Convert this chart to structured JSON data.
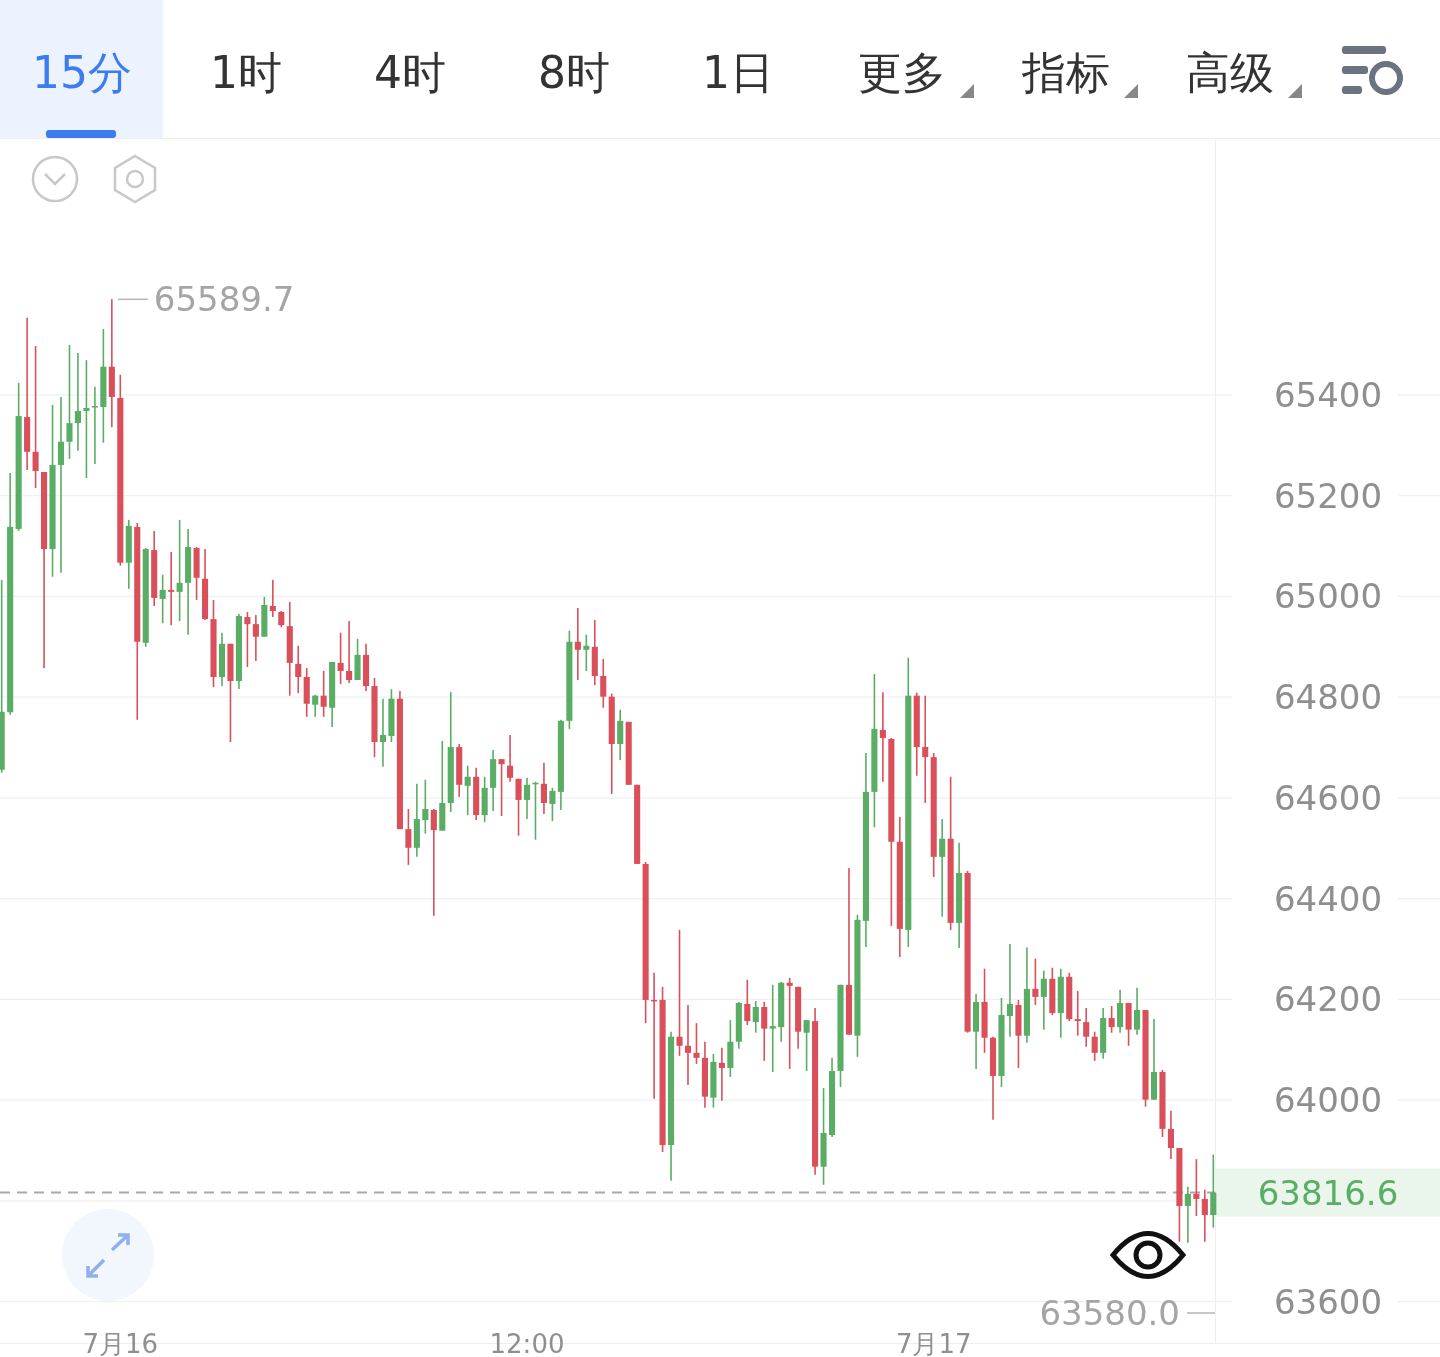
{
  "chart_data": {
    "type": "candlestick",
    "categories": [
      null,
      null,
      null,
      null,
      null,
      null,
      null,
      null,
      null,
      null,
      null,
      null,
      null,
      null,
      "7月16",
      null,
      null,
      null,
      null,
      null,
      null,
      null,
      null,
      null,
      null,
      null,
      null,
      null,
      null,
      null,
      null,
      null,
      null,
      null,
      null,
      null,
      null,
      null,
      null,
      null,
      null,
      null,
      null,
      null,
      null,
      null,
      null,
      null,
      null,
      null,
      null,
      null,
      null,
      null,
      null,
      null,
      null,
      null,
      null,
      null,
      null,
      null,
      "12:00",
      null,
      null,
      null,
      null,
      null,
      null,
      null,
      null,
      null,
      null,
      null,
      null,
      null,
      null,
      null,
      null,
      null,
      null,
      null,
      null,
      null,
      null,
      null,
      null,
      null,
      null,
      null,
      null,
      null,
      null,
      null,
      null,
      null,
      null,
      null,
      null,
      null,
      null,
      null,
      null,
      null,
      null,
      null,
      null,
      null,
      null,
      null,
      "7月17",
      null,
      null,
      null,
      null,
      null,
      null,
      null,
      null,
      null,
      null,
      null,
      null,
      null,
      null,
      null,
      null,
      null,
      null,
      null,
      null,
      null,
      null,
      null,
      null,
      null,
      null,
      null,
      null,
      null,
      null,
      null,
      null,
      null
    ],
    "ohlc": [
      [
        64656,
        65033,
        64650,
        64771
      ],
      [
        64770,
        65245,
        64765,
        65138
      ],
      [
        65134,
        65424,
        65130,
        65358
      ],
      [
        65356,
        65553,
        65251,
        65287
      ],
      [
        65287,
        65497,
        65215,
        65249
      ],
      [
        65247,
        65247,
        64858,
        65094
      ],
      [
        65094,
        65380,
        65039,
        65261
      ],
      [
        65261,
        65396,
        65047,
        65307
      ],
      [
        65307,
        65499,
        65273,
        65344
      ],
      [
        65344,
        65483,
        65289,
        65368
      ],
      [
        65368,
        65469,
        65235,
        65374
      ],
      [
        65376,
        65416,
        65263,
        65378
      ],
      [
        65376,
        65531,
        65305,
        65456
      ],
      [
        65456,
        65589.7,
        65336,
        65396
      ],
      [
        65394,
        65440,
        65061,
        65067
      ],
      [
        65067,
        65152,
        65015,
        65140
      ],
      [
        65138,
        65146,
        64755,
        64910
      ],
      [
        64908,
        65096,
        64900,
        65094
      ],
      [
        65092,
        65130,
        64981,
        64997
      ],
      [
        64995,
        65043,
        64947,
        65013
      ],
      [
        65013,
        65088,
        64943,
        65009
      ],
      [
        65009,
        65152,
        64951,
        65027
      ],
      [
        65027,
        65134,
        64924,
        65098
      ],
      [
        65096,
        65098,
        64993,
        65037
      ],
      [
        65035,
        65094,
        64953,
        64955
      ],
      [
        64955,
        64993,
        64820,
        64840
      ],
      [
        64840,
        64928,
        64822,
        64906
      ],
      [
        64906,
        64906,
        64711,
        64832
      ],
      [
        64832,
        64965,
        64816,
        64961
      ],
      [
        64959,
        64969,
        64860,
        64945
      ],
      [
        64945,
        64963,
        64872,
        64920
      ],
      [
        64920,
        64999,
        64920,
        64983
      ],
      [
        64981,
        65033,
        64959,
        64971
      ],
      [
        64969,
        64971,
        64939,
        64943
      ],
      [
        64941,
        64989,
        64803,
        64868
      ],
      [
        64866,
        64902,
        64808,
        64840
      ],
      [
        64840,
        64858,
        64761,
        64787
      ],
      [
        64785,
        64805,
        64761,
        64803
      ],
      [
        64803,
        64852,
        64761,
        64781
      ],
      [
        64779,
        64870,
        64741,
        64870
      ],
      [
        64868,
        64928,
        64826,
        64852
      ],
      [
        64852,
        64951,
        64828,
        64834
      ],
      [
        64834,
        64916,
        64834,
        64884
      ],
      [
        64884,
        64906,
        64812,
        64822
      ],
      [
        64822,
        64838,
        64681,
        64711
      ],
      [
        64711,
        64797,
        64662,
        64725
      ],
      [
        64723,
        64816,
        64711,
        64797
      ],
      [
        64797,
        64812,
        64538,
        64538
      ],
      [
        64538,
        64578,
        64467,
        64501
      ],
      [
        64501,
        64628,
        64483,
        64558
      ],
      [
        64556,
        64636,
        64529,
        64578
      ],
      [
        64576,
        64578,
        64366,
        64536
      ],
      [
        64535,
        64713,
        64535,
        64590
      ],
      [
        64590,
        64810,
        64572,
        64701
      ],
      [
        64701,
        64707,
        64602,
        64626
      ],
      [
        64624,
        64664,
        64566,
        64642
      ],
      [
        64642,
        64660,
        64556,
        64566
      ],
      [
        64566,
        64642,
        64552,
        64620
      ],
      [
        64620,
        64695,
        64574,
        64677
      ],
      [
        64677,
        64677,
        64564,
        64667
      ],
      [
        64664,
        64725,
        64632,
        64640
      ],
      [
        64638,
        64638,
        64525,
        64596
      ],
      [
        64596,
        64640,
        64558,
        64626
      ],
      [
        64628,
        64632,
        64517,
        64630
      ],
      [
        64628,
        64670,
        64568,
        64590
      ],
      [
        64588,
        64620,
        64554,
        64614
      ],
      [
        64612,
        64755,
        64576,
        64753
      ],
      [
        64753,
        64932,
        64737,
        64910
      ],
      [
        64910,
        64977,
        64834,
        64894
      ],
      [
        64894,
        64924,
        64852,
        64902
      ],
      [
        64900,
        64953,
        64824,
        64842
      ],
      [
        64842,
        64876,
        64779,
        64801
      ],
      [
        64801,
        64807,
        64608,
        64707
      ],
      [
        64707,
        64775,
        64675,
        64753
      ],
      [
        64751,
        64751,
        64626,
        64626
      ],
      [
        64626,
        64626,
        64469,
        64469
      ],
      [
        64469,
        64473,
        64153,
        64199
      ],
      [
        64199,
        64253,
        64003,
        64197
      ],
      [
        64199,
        64225,
        63897,
        63911
      ],
      [
        63911,
        64136,
        63840,
        64126
      ],
      [
        64126,
        64338,
        64088,
        64108
      ],
      [
        64108,
        64189,
        64030,
        64094
      ],
      [
        64094,
        64153,
        64072,
        64084
      ],
      [
        64084,
        64116,
        63985,
        64007
      ],
      [
        64005,
        64092,
        63985,
        64076
      ],
      [
        64074,
        64104,
        63999,
        64064
      ],
      [
        64064,
        64159,
        64046,
        64116
      ],
      [
        64116,
        64195,
        64102,
        64193
      ],
      [
        64191,
        64239,
        64149,
        64157
      ],
      [
        64155,
        64197,
        64134,
        64185
      ],
      [
        64185,
        64195,
        64078,
        64142
      ],
      [
        64142,
        64229,
        64056,
        64147
      ],
      [
        64145,
        64235,
        64116,
        64233
      ],
      [
        64233,
        64243,
        64062,
        64227
      ],
      [
        64225,
        64225,
        64102,
        64136
      ],
      [
        64134,
        64159,
        64058,
        64159
      ],
      [
        64157,
        64183,
        63852,
        63868
      ],
      [
        63868,
        64024,
        63832,
        63935
      ],
      [
        63931,
        64084,
        63927,
        64058
      ],
      [
        64058,
        64229,
        64026,
        64229
      ],
      [
        64229,
        64461,
        64130,
        64130
      ],
      [
        64128,
        64368,
        64086,
        64358
      ],
      [
        64356,
        64689,
        64304,
        64612
      ],
      [
        64612,
        64846,
        64542,
        64737
      ],
      [
        64735,
        64810,
        64632,
        64719
      ],
      [
        64717,
        64719,
        64346,
        64513
      ],
      [
        64513,
        64562,
        64284,
        64340
      ],
      [
        64338,
        64878,
        64304,
        64803
      ],
      [
        64803,
        64809,
        64644,
        64701
      ],
      [
        64701,
        64803,
        64590,
        64681
      ],
      [
        64681,
        64689,
        64443,
        64483
      ],
      [
        64483,
        64558,
        64364,
        64519
      ],
      [
        64519,
        64642,
        64338,
        64352
      ],
      [
        64352,
        64511,
        64302,
        64451
      ],
      [
        64451,
        64455,
        64134,
        64136
      ],
      [
        64136,
        64211,
        64062,
        64195
      ],
      [
        64195,
        64261,
        64094,
        64124
      ],
      [
        64124,
        64126,
        63961,
        64048
      ],
      [
        64048,
        64203,
        64026,
        64169
      ],
      [
        64167,
        64310,
        64126,
        64191
      ],
      [
        64189,
        64199,
        64064,
        64128
      ],
      [
        64128,
        64303,
        64114,
        64221
      ],
      [
        64221,
        64281,
        64189,
        64205
      ],
      [
        64205,
        64257,
        64140,
        64241
      ],
      [
        64241,
        64263,
        64169,
        64173
      ],
      [
        64173,
        64261,
        64124,
        64245
      ],
      [
        64245,
        64253,
        64157,
        64161
      ],
      [
        64161,
        64217,
        64128,
        64157
      ],
      [
        64155,
        64183,
        64106,
        64126
      ],
      [
        64126,
        64136,
        64078,
        64094
      ],
      [
        64094,
        64183,
        64082,
        64163
      ],
      [
        64163,
        64187,
        64134,
        64145
      ],
      [
        64145,
        64219,
        64134,
        64193
      ],
      [
        64193,
        64193,
        64108,
        64140
      ],
      [
        64140,
        64223,
        64130,
        64179
      ],
      [
        64179,
        64179,
        63987,
        64001
      ],
      [
        64001,
        64161,
        64001,
        64056
      ],
      [
        64056,
        64060,
        63927,
        63943
      ],
      [
        63943,
        63979,
        63883,
        63905
      ],
      [
        63905,
        63905,
        63719,
        63790
      ],
      [
        63790,
        63828,
        63717,
        63814
      ],
      [
        63814,
        63883,
        63770,
        63804
      ],
      [
        63804,
        63822,
        63719,
        63772
      ],
      [
        63772,
        63892,
        63747,
        63816.6
      ]
    ],
    "colors": [
      "#5aad64",
      "#5aad64",
      "#5aad64",
      "#d9505b",
      "#d9505b",
      "#d9505b",
      "#5aad64",
      "#5aad64",
      "#5aad64",
      "#5aad64",
      "#5aad64",
      "#5aad64",
      "#5aad64",
      "#d9505b",
      "#d9505b",
      "#5aad64",
      "#d9505b",
      "#5aad64",
      "#d9505b",
      "#5aad64",
      "#d9505b",
      "#5aad64",
      "#5aad64",
      "#d9505b",
      "#d9505b",
      "#d9505b",
      "#5aad64",
      "#d9505b",
      "#5aad64",
      "#d9505b",
      "#d9505b",
      "#5aad64",
      "#d9505b",
      "#d9505b",
      "#d9505b",
      "#d9505b",
      "#d9505b",
      "#5aad64",
      "#d9505b",
      "#5aad64",
      "#d9505b",
      "#d9505b",
      "#5aad64",
      "#d9505b",
      "#d9505b",
      "#5aad64",
      "#5aad64",
      "#d9505b",
      "#d9505b",
      "#5aad64",
      "#5aad64",
      "#d9505b",
      "#5aad64",
      "#5aad64",
      "#d9505b",
      "#5aad64",
      "#d9505b",
      "#5aad64",
      "#5aad64",
      "#d9505b",
      "#d9505b",
      "#d9505b",
      "#5aad64",
      "#5aad64",
      "#d9505b",
      "#5aad64",
      "#5aad64",
      "#5aad64",
      "#d9505b",
      "#5aad64",
      "#d9505b",
      "#d9505b",
      "#d9505b",
      "#5aad64",
      "#d9505b",
      "#d9505b",
      "#d9505b",
      "#d9505b",
      "#d9505b",
      "#5aad64",
      "#d9505b",
      "#d9505b",
      "#d9505b",
      "#d9505b",
      "#5aad64",
      "#d9505b",
      "#5aad64",
      "#5aad64",
      "#d9505b",
      "#5aad64",
      "#d9505b",
      "#5aad64",
      "#5aad64",
      "#d9505b",
      "#d9505b",
      "#5aad64",
      "#d9505b",
      "#5aad64",
      "#5aad64",
      "#5aad64",
      "#d9505b",
      "#5aad64",
      "#5aad64",
      "#5aad64",
      "#d9505b",
      "#d9505b",
      "#d9505b",
      "#5aad64",
      "#d9505b",
      "#d9505b",
      "#d9505b",
      "#5aad64",
      "#d9505b",
      "#5aad64",
      "#d9505b",
      "#5aad64",
      "#d9505b",
      "#d9505b",
      "#5aad64",
      "#5aad64",
      "#d9505b",
      "#5aad64",
      "#d9505b",
      "#5aad64",
      "#d9505b",
      "#5aad64",
      "#d9505b",
      "#d9505b",
      "#d9505b",
      "#d9505b",
      "#5aad64",
      "#d9505b",
      "#5aad64",
      "#d9505b",
      "#5aad64",
      "#d9505b",
      "#5aad64",
      "#d9505b",
      "#d9505b",
      "#d9505b",
      "#5aad64",
      "#d9505b",
      "#d9505b",
      "#5aad64"
    ],
    "ylim": [
      63518,
      65906
    ],
    "yticks": [
      63600,
      {
        "value": 63800,
        "label": null
      },
      64000,
      64200,
      64400,
      64600,
      64800,
      65000,
      65200,
      65400
    ],
    "grid": "y",
    "ref_lines": [
      {
        "axis": "y",
        "value": 63816.6,
        "label": "63816.6",
        "color": "#a8a8a8",
        "line_style": "dashed"
      }
    ],
    "annotations": [
      "15分",
      "1时",
      "4时",
      "8时",
      "1日",
      "更多",
      "指标",
      "高级",
      "65589.7",
      "63580.0"
    ]
  }
}
